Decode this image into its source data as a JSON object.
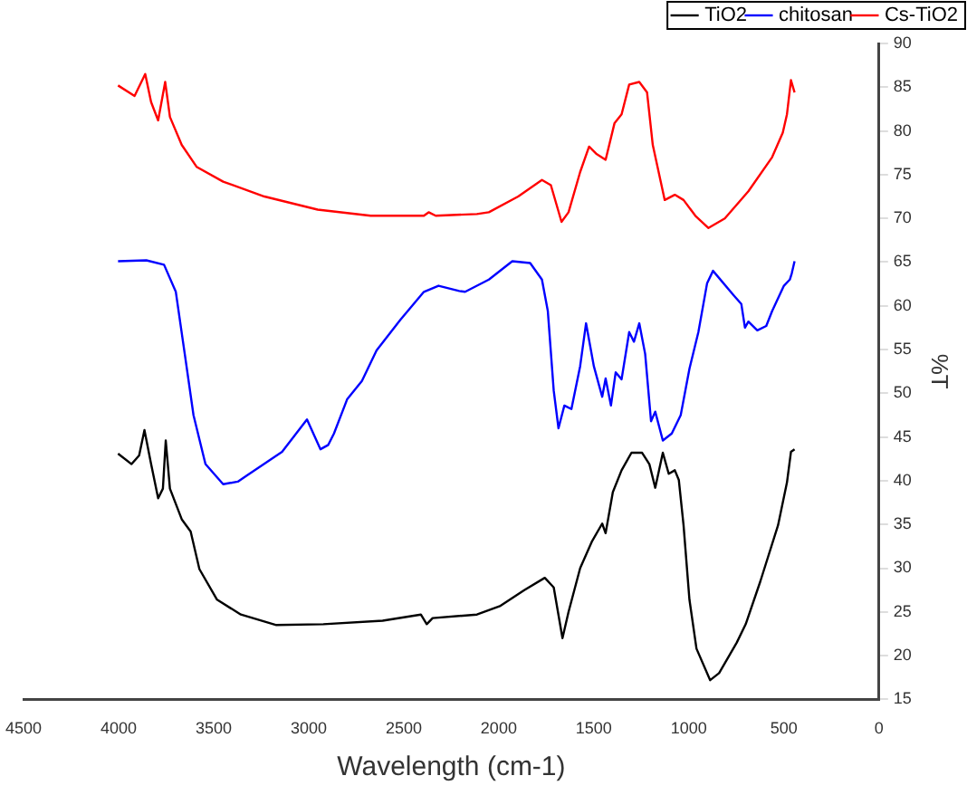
{
  "chart_data": {
    "type": "line",
    "xlabel": "Wavelength (cm-1)",
    "ylabel": "%T",
    "xlim": [
      4500,
      0
    ],
    "xticks": [
      4500,
      4000,
      3500,
      3000,
      2500,
      2000,
      1500,
      1000,
      500,
      0
    ],
    "ylim": [
      15,
      90
    ],
    "yticks": [
      15,
      20,
      25,
      30,
      35,
      40,
      45,
      50,
      55,
      60,
      65,
      70,
      75,
      80,
      85,
      90
    ],
    "grid": false,
    "legend": "top right",
    "marker": "none",
    "line_style": "solid",
    "series": [
      {
        "name": "TiO2",
        "color": "#000000",
        "x": [
          4003,
          3932,
          3892,
          3864,
          3829,
          3792,
          3767,
          3752,
          3730,
          3668,
          3621,
          3575,
          3482,
          3357,
          3170,
          2923,
          2611,
          2410,
          2379,
          2348,
          2115,
          1991,
          1866,
          1758,
          1711,
          1665,
          1633,
          1572,
          1509,
          1456,
          1438,
          1400,
          1354,
          1302,
          1246,
          1208,
          1177,
          1137,
          1106,
          1074,
          1053,
          1028,
          997,
          960,
          888,
          841,
          748,
          701,
          624,
          531,
          484,
          463,
          444
        ],
        "values": [
          43.1,
          41.9,
          42.9,
          45.8,
          41.9,
          38.0,
          39.1,
          44.6,
          39.1,
          35.6,
          34.2,
          29.9,
          26.4,
          24.7,
          23.5,
          23.6,
          24.0,
          24.7,
          23.6,
          24.3,
          24.7,
          25.7,
          27.5,
          28.9,
          27.8,
          22.0,
          25.0,
          30.0,
          33.1,
          35.1,
          34.0,
          38.7,
          41.2,
          43.2,
          43.2,
          41.9,
          39.2,
          43.2,
          40.8,
          41.2,
          40.1,
          34.9,
          26.4,
          20.8,
          17.2,
          18.0,
          21.5,
          23.6,
          28.5,
          34.9,
          39.8,
          43.3,
          43.6
        ]
      },
      {
        "name": "chitosan",
        "color": "#0000ff",
        "x": [
          4003,
          3854,
          3761,
          3699,
          3652,
          3606,
          3543,
          3450,
          3373,
          3326,
          3140,
          3009,
          2938,
          2897,
          2867,
          2798,
          2720,
          2643,
          2518,
          2394,
          2317,
          2208,
          2177,
          2052,
          1929,
          1835,
          1773,
          1742,
          1711,
          1686,
          1655,
          1618,
          1572,
          1541,
          1500,
          1456,
          1438,
          1410,
          1385,
          1354,
          1314,
          1289,
          1261,
          1230,
          1199,
          1177,
          1137,
          1090,
          1043,
          997,
          950,
          904,
          873,
          764,
          724,
          705,
          687,
          640,
          593,
          562,
          500,
          469,
          459,
          444
        ],
        "values": [
          65.1,
          65.2,
          64.7,
          61.6,
          54.5,
          47.5,
          41.9,
          39.6,
          39.9,
          40.6,
          43.3,
          47.0,
          43.6,
          44.1,
          45.4,
          49.3,
          51.4,
          54.9,
          58.4,
          61.6,
          62.3,
          61.7,
          61.6,
          63.0,
          65.1,
          64.9,
          63.0,
          59.4,
          50.3,
          46.0,
          48.6,
          48.2,
          53.1,
          58.0,
          53.1,
          49.6,
          51.7,
          48.6,
          52.4,
          51.6,
          57.0,
          55.9,
          58.0,
          54.5,
          46.8,
          47.9,
          44.6,
          45.4,
          47.5,
          52.8,
          57.0,
          62.6,
          64.0,
          61.2,
          60.2,
          57.5,
          58.2,
          57.2,
          57.7,
          59.4,
          62.3,
          63.0,
          63.7,
          65.1
        ]
      },
      {
        "name": "Cs-TiO2",
        "color": "#ff0000",
        "x": [
          4003,
          3916,
          3860,
          3829,
          3792,
          3755,
          3730,
          3668,
          3590,
          3450,
          3233,
          2953,
          2674,
          2394,
          2369,
          2332,
          2115,
          2052,
          1898,
          1773,
          1726,
          1670,
          1633,
          1572,
          1525,
          1488,
          1438,
          1391,
          1354,
          1314,
          1261,
          1220,
          1190,
          1127,
          1074,
          1028,
          966,
          897,
          811,
          687,
          562,
          506,
          484,
          463,
          444
        ],
        "values": [
          85.2,
          84.0,
          86.5,
          83.3,
          81.2,
          85.6,
          81.6,
          78.4,
          75.9,
          74.2,
          72.5,
          71.0,
          70.3,
          70.3,
          70.7,
          70.3,
          70.5,
          70.7,
          72.5,
          74.4,
          73.8,
          69.6,
          70.7,
          75.3,
          78.2,
          77.4,
          76.7,
          80.9,
          81.9,
          85.3,
          85.6,
          84.4,
          78.4,
          72.1,
          72.7,
          72.1,
          70.3,
          68.9,
          70.0,
          73.1,
          77.0,
          79.8,
          81.9,
          85.8,
          84.4
        ]
      }
    ]
  }
}
